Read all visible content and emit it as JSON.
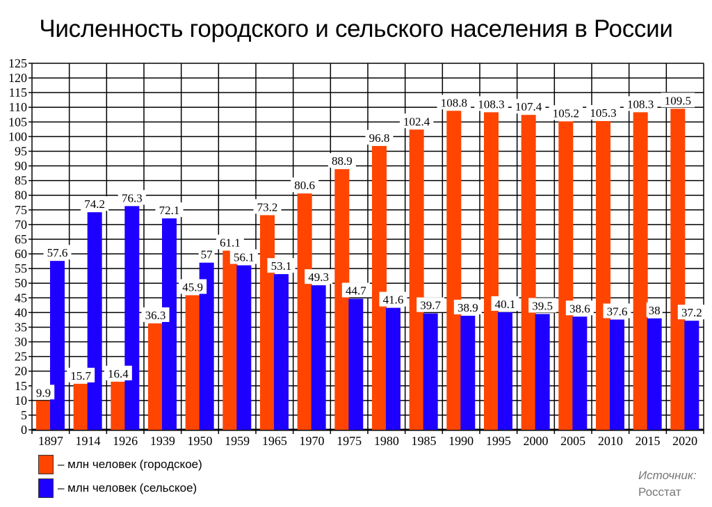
{
  "title": "Численность городского и сельского населения в России",
  "legend": {
    "urban": "– млн человек (городское)",
    "rural": "– млн человек (сельское)"
  },
  "source": {
    "label": "Источник:",
    "name": "Росстат"
  },
  "colors": {
    "urban": "#ff4500",
    "rural": "#1e00ff"
  },
  "chart_data": {
    "type": "bar",
    "title": "Численность городского и сельского населения в России",
    "xlabel": "",
    "ylabel": "",
    "ylim": [
      0,
      125
    ],
    "yticks": [
      0,
      5,
      10,
      15,
      20,
      25,
      30,
      35,
      40,
      45,
      50,
      55,
      60,
      65,
      70,
      75,
      80,
      85,
      90,
      95,
      100,
      105,
      110,
      115,
      120,
      125
    ],
    "grid": true,
    "legend_position": "bottom-left",
    "categories": [
      "1897",
      "1914",
      "1926",
      "1939",
      "1950",
      "1959",
      "1965",
      "1970",
      "1975",
      "1980",
      "1985",
      "1990",
      "1995",
      "2000",
      "2005",
      "2010",
      "2015",
      "2020"
    ],
    "series": [
      {
        "name": "млн человек (городское)",
        "values": [
          9.9,
          15.7,
          16.4,
          36.3,
          45.9,
          61.1,
          73.2,
          80.6,
          88.9,
          96.8,
          102.4,
          108.8,
          108.3,
          107.4,
          105.2,
          105.3,
          108.3,
          109.5
        ]
      },
      {
        "name": "млн человек (сельское)",
        "values": [
          57.6,
          74.2,
          76.3,
          72.1,
          57,
          56.1,
          53.1,
          49.3,
          44.7,
          41.6,
          39.7,
          38.9,
          40.1,
          39.5,
          38.6,
          37.6,
          38,
          37.2
        ]
      }
    ]
  }
}
